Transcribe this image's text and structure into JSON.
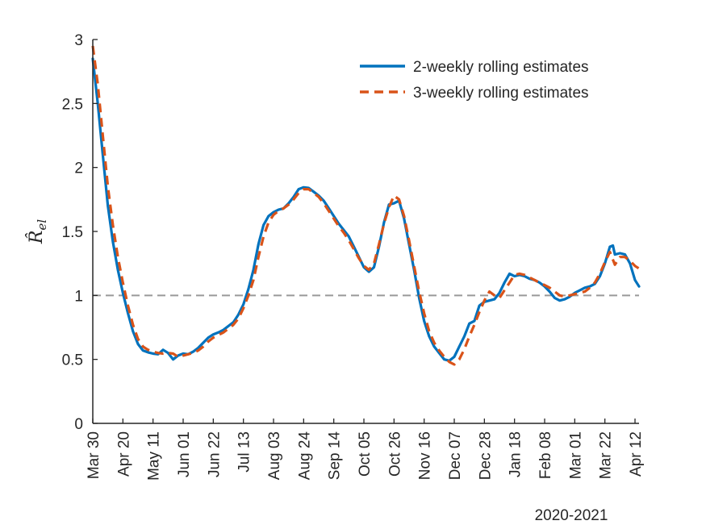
{
  "chart_data": {
    "type": "line",
    "title": "",
    "xlabel": "2020-2021",
    "ylabel": "R̂_el",
    "ylabel_main": "R̂",
    "ylabel_sub": "el",
    "ylim": [
      0,
      3
    ],
    "yticks": [
      0,
      0.5,
      1,
      1.5,
      2,
      2.5,
      3
    ],
    "ytick_labels": [
      "0",
      "0.5",
      "1",
      "1.5",
      "2",
      "2.5",
      "3"
    ],
    "xlim_weeks": [
      0,
      54.4
    ],
    "xticks": [
      {
        "label": "Mar 30",
        "week": 0
      },
      {
        "label": "Apr 20",
        "week": 3
      },
      {
        "label": "May 11",
        "week": 6
      },
      {
        "label": "Jun 01",
        "week": 9
      },
      {
        "label": "Jun 22",
        "week": 12
      },
      {
        "label": "Jul 13",
        "week": 15
      },
      {
        "label": "Aug 03",
        "week": 18
      },
      {
        "label": "Aug 24",
        "week": 21
      },
      {
        "label": "Sep 14",
        "week": 24
      },
      {
        "label": "Oct 05",
        "week": 27
      },
      {
        "label": "Oct 26",
        "week": 30
      },
      {
        "label": "Nov 16",
        "week": 33
      },
      {
        "label": "Dec 07",
        "week": 36
      },
      {
        "label": "Dec 28",
        "week": 39
      },
      {
        "label": "Jan 18",
        "week": 42
      },
      {
        "label": "Feb 08",
        "week": 45
      },
      {
        "label": "Mar 01",
        "week": 48
      },
      {
        "label": "Mar 22",
        "week": 51
      },
      {
        "label": "Apr 12",
        "week": 54
      }
    ],
    "reference_line": {
      "y": 1,
      "color": "#999999"
    },
    "legend_position": "top-right",
    "series": [
      {
        "name": "2-weekly rolling estimates",
        "color": "#0072BD",
        "style": "solid",
        "points": [
          [
            0,
            2.85
          ],
          [
            0.5,
            2.5
          ],
          [
            1,
            2.1
          ],
          [
            1.5,
            1.7
          ],
          [
            2,
            1.42
          ],
          [
            2.5,
            1.2
          ],
          [
            3,
            1.02
          ],
          [
            3.5,
            0.86
          ],
          [
            4,
            0.72
          ],
          [
            4.5,
            0.62
          ],
          [
            5,
            0.57
          ],
          [
            5.5,
            0.555
          ],
          [
            6,
            0.545
          ],
          [
            6.5,
            0.54
          ],
          [
            7,
            0.575
          ],
          [
            7.5,
            0.55
          ],
          [
            8,
            0.5
          ],
          [
            8.5,
            0.53
          ],
          [
            9,
            0.545
          ],
          [
            9.5,
            0.54
          ],
          [
            10,
            0.56
          ],
          [
            10.5,
            0.59
          ],
          [
            11,
            0.63
          ],
          [
            11.5,
            0.67
          ],
          [
            12,
            0.695
          ],
          [
            12.5,
            0.71
          ],
          [
            13,
            0.73
          ],
          [
            13.5,
            0.76
          ],
          [
            14,
            0.79
          ],
          [
            14.5,
            0.85
          ],
          [
            15,
            0.93
          ],
          [
            15.5,
            1.05
          ],
          [
            16,
            1.2
          ],
          [
            16.5,
            1.4
          ],
          [
            17,
            1.55
          ],
          [
            17.5,
            1.62
          ],
          [
            18,
            1.65
          ],
          [
            18.5,
            1.67
          ],
          [
            19,
            1.68
          ],
          [
            19.5,
            1.72
          ],
          [
            20,
            1.77
          ],
          [
            20.5,
            1.83
          ],
          [
            21,
            1.845
          ],
          [
            21.5,
            1.84
          ],
          [
            22,
            1.81
          ],
          [
            22.5,
            1.78
          ],
          [
            23,
            1.74
          ],
          [
            23.5,
            1.68
          ],
          [
            24,
            1.62
          ],
          [
            24.5,
            1.56
          ],
          [
            25,
            1.51
          ],
          [
            25.5,
            1.46
          ],
          [
            26,
            1.38
          ],
          [
            26.5,
            1.3
          ],
          [
            27,
            1.22
          ],
          [
            27.5,
            1.185
          ],
          [
            28,
            1.22
          ],
          [
            28.5,
            1.38
          ],
          [
            29,
            1.57
          ],
          [
            29.5,
            1.71
          ],
          [
            30,
            1.72
          ],
          [
            30.5,
            1.74
          ],
          [
            31,
            1.6
          ],
          [
            31.5,
            1.4
          ],
          [
            32,
            1.2
          ],
          [
            32.5,
            0.98
          ],
          [
            33,
            0.8
          ],
          [
            33.5,
            0.68
          ],
          [
            34,
            0.6
          ],
          [
            34.5,
            0.55
          ],
          [
            35,
            0.5
          ],
          [
            35.5,
            0.49
          ],
          [
            36,
            0.52
          ],
          [
            36.5,
            0.6
          ],
          [
            37,
            0.68
          ],
          [
            37.5,
            0.78
          ],
          [
            38,
            0.8
          ],
          [
            38.5,
            0.92
          ],
          [
            39,
            0.95
          ],
          [
            39.5,
            0.96
          ],
          [
            40,
            0.97
          ],
          [
            40.5,
            1.02
          ],
          [
            41,
            1.1
          ],
          [
            41.5,
            1.17
          ],
          [
            42,
            1.15
          ],
          [
            42.5,
            1.16
          ],
          [
            43,
            1.15
          ],
          [
            43.5,
            1.13
          ],
          [
            44,
            1.12
          ],
          [
            44.5,
            1.1
          ],
          [
            45,
            1.07
          ],
          [
            45.5,
            1.03
          ],
          [
            46,
            0.98
          ],
          [
            46.5,
            0.96
          ],
          [
            47,
            0.97
          ],
          [
            47.5,
            0.99
          ],
          [
            48,
            1.02
          ],
          [
            48.5,
            1.04
          ],
          [
            49,
            1.06
          ],
          [
            49.5,
            1.07
          ],
          [
            50,
            1.09
          ],
          [
            50.5,
            1.15
          ],
          [
            51,
            1.25
          ],
          [
            51.5,
            1.38
          ],
          [
            51.8,
            1.39
          ],
          [
            52,
            1.32
          ],
          [
            52.5,
            1.33
          ],
          [
            53,
            1.32
          ],
          [
            53.5,
            1.25
          ],
          [
            54,
            1.12
          ],
          [
            54.4,
            1.07
          ]
        ]
      },
      {
        "name": "3-weekly rolling estimates",
        "color": "#D95319",
        "style": "dashed",
        "points": [
          [
            0,
            2.95
          ],
          [
            0.5,
            2.65
          ],
          [
            1,
            2.25
          ],
          [
            1.5,
            1.85
          ],
          [
            2,
            1.55
          ],
          [
            2.5,
            1.3
          ],
          [
            3,
            1.1
          ],
          [
            3.5,
            0.92
          ],
          [
            4,
            0.77
          ],
          [
            4.5,
            0.66
          ],
          [
            5,
            0.6
          ],
          [
            5.5,
            0.575
          ],
          [
            6,
            0.56
          ],
          [
            6.5,
            0.55
          ],
          [
            7,
            0.545
          ],
          [
            7.5,
            0.55
          ],
          [
            8,
            0.545
          ],
          [
            8.5,
            0.52
          ],
          [
            9,
            0.53
          ],
          [
            9.5,
            0.54
          ],
          [
            10,
            0.55
          ],
          [
            10.5,
            0.57
          ],
          [
            11,
            0.6
          ],
          [
            11.5,
            0.64
          ],
          [
            12,
            0.67
          ],
          [
            12.5,
            0.69
          ],
          [
            13,
            0.71
          ],
          [
            13.5,
            0.74
          ],
          [
            14,
            0.77
          ],
          [
            14.5,
            0.82
          ],
          [
            15,
            0.9
          ],
          [
            15.5,
            1.0
          ],
          [
            16,
            1.12
          ],
          [
            16.5,
            1.3
          ],
          [
            17,
            1.46
          ],
          [
            17.5,
            1.57
          ],
          [
            18,
            1.63
          ],
          [
            18.5,
            1.66
          ],
          [
            19,
            1.68
          ],
          [
            19.5,
            1.71
          ],
          [
            20,
            1.75
          ],
          [
            20.5,
            1.8
          ],
          [
            21,
            1.83
          ],
          [
            21.5,
            1.83
          ],
          [
            22,
            1.8
          ],
          [
            22.5,
            1.77
          ],
          [
            23,
            1.72
          ],
          [
            23.5,
            1.66
          ],
          [
            24,
            1.6
          ],
          [
            24.5,
            1.54
          ],
          [
            25,
            1.49
          ],
          [
            25.5,
            1.43
          ],
          [
            26,
            1.36
          ],
          [
            26.5,
            1.29
          ],
          [
            27,
            1.23
          ],
          [
            27.5,
            1.2
          ],
          [
            28,
            1.25
          ],
          [
            28.5,
            1.4
          ],
          [
            29,
            1.56
          ],
          [
            29.5,
            1.69
          ],
          [
            30,
            1.78
          ],
          [
            30.5,
            1.75
          ],
          [
            31,
            1.62
          ],
          [
            31.5,
            1.43
          ],
          [
            32,
            1.23
          ],
          [
            32.5,
            1.03
          ],
          [
            33,
            0.86
          ],
          [
            33.5,
            0.72
          ],
          [
            34,
            0.63
          ],
          [
            34.5,
            0.57
          ],
          [
            35,
            0.52
          ],
          [
            35.5,
            0.48
          ],
          [
            36,
            0.46
          ],
          [
            36.5,
            0.5
          ],
          [
            37,
            0.58
          ],
          [
            37.5,
            0.68
          ],
          [
            38,
            0.77
          ],
          [
            38.5,
            0.87
          ],
          [
            39,
            0.96
          ],
          [
            39.5,
            1.03
          ],
          [
            40,
            1.0
          ],
          [
            40.5,
            0.98
          ],
          [
            41,
            1.04
          ],
          [
            41.5,
            1.1
          ],
          [
            42,
            1.16
          ],
          [
            42.5,
            1.17
          ],
          [
            43,
            1.16
          ],
          [
            43.5,
            1.14
          ],
          [
            44,
            1.12
          ],
          [
            44.5,
            1.1
          ],
          [
            45,
            1.08
          ],
          [
            45.5,
            1.06
          ],
          [
            46,
            1.03
          ],
          [
            46.5,
            1.0
          ],
          [
            47,
            0.99
          ],
          [
            47.5,
            1.0
          ],
          [
            48,
            1.01
          ],
          [
            48.5,
            1.02
          ],
          [
            49,
            1.03
          ],
          [
            49.5,
            1.06
          ],
          [
            50,
            1.1
          ],
          [
            50.5,
            1.17
          ],
          [
            51,
            1.26
          ],
          [
            51.5,
            1.34
          ],
          [
            52,
            1.24
          ],
          [
            52.5,
            1.3
          ],
          [
            53,
            1.3
          ],
          [
            53.5,
            1.27
          ],
          [
            54,
            1.23
          ],
          [
            54.4,
            1.21
          ]
        ]
      }
    ]
  }
}
